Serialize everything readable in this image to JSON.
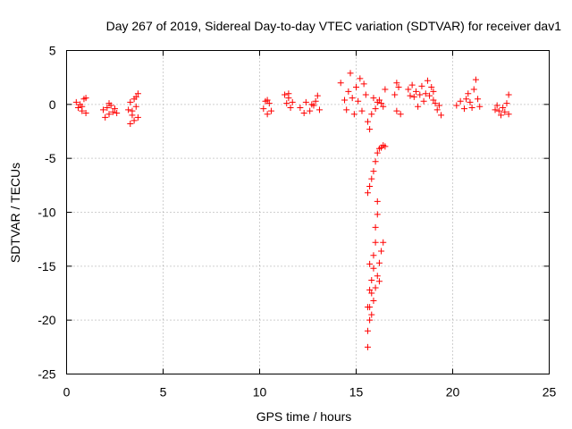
{
  "chart_data": {
    "type": "scatter",
    "title": "Day 267 of 2019, Sidereal Day-to-day VTEC variation (SDTVAR) for receiver dav1",
    "xlabel": "GPS time / hours",
    "ylabel": "SDTVAR / TECUs",
    "xlim": [
      0,
      25
    ],
    "ylim": [
      -25,
      5
    ],
    "xticks": [
      0,
      5,
      10,
      15,
      20,
      25
    ],
    "xtick_labels": [
      "0",
      "5",
      "10",
      "15",
      "20",
      "25"
    ],
    "yticks": [
      5,
      0,
      -5,
      -10,
      -15,
      -20,
      -25
    ],
    "ytick_labels": [
      "5",
      "0",
      "-5",
      "-10",
      "-15",
      "-20",
      "-25"
    ],
    "grid": true,
    "marker": "+",
    "color": "#ff0000",
    "series": [
      {
        "name": "SDTVAR",
        "points": [
          [
            0.5,
            0.2
          ],
          [
            0.6,
            -0.3
          ],
          [
            0.7,
            0.0
          ],
          [
            0.8,
            -0.6
          ],
          [
            0.9,
            0.5
          ],
          [
            1.0,
            -0.8
          ],
          [
            1.0,
            0.6
          ],
          [
            0.8,
            -0.2
          ],
          [
            1.9,
            -0.5
          ],
          [
            2.0,
            -1.2
          ],
          [
            2.1,
            -0.3
          ],
          [
            2.2,
            -0.9
          ],
          [
            2.3,
            -0.1
          ],
          [
            2.4,
            -0.7
          ],
          [
            2.5,
            -0.4
          ],
          [
            2.6,
            -0.8
          ],
          [
            2.2,
            0.1
          ],
          [
            3.2,
            -0.5
          ],
          [
            3.3,
            0.2
          ],
          [
            3.3,
            -1.8
          ],
          [
            3.4,
            -1.0
          ],
          [
            3.5,
            0.5
          ],
          [
            3.5,
            -1.5
          ],
          [
            3.6,
            -0.2
          ],
          [
            3.7,
            1.0
          ],
          [
            3.6,
            0.7
          ],
          [
            3.4,
            -0.6
          ],
          [
            3.7,
            -1.2
          ],
          [
            10.2,
            -0.4
          ],
          [
            10.3,
            0.3
          ],
          [
            10.4,
            -0.9
          ],
          [
            10.5,
            0.1
          ],
          [
            10.6,
            -0.6
          ],
          [
            10.4,
            0.4
          ],
          [
            11.3,
            0.9
          ],
          [
            11.4,
            0.1
          ],
          [
            11.5,
            0.6
          ],
          [
            11.6,
            -0.3
          ],
          [
            11.7,
            0.2
          ],
          [
            11.5,
            1.0
          ],
          [
            12.1,
            -0.3
          ],
          [
            12.3,
            -0.8
          ],
          [
            12.4,
            0.2
          ],
          [
            12.6,
            -0.6
          ],
          [
            12.8,
            -0.1
          ],
          [
            12.9,
            0.3
          ],
          [
            13.0,
            0.8
          ],
          [
            13.1,
            -0.5
          ],
          [
            12.7,
            0.0
          ],
          [
            14.2,
            2.0
          ],
          [
            14.4,
            0.4
          ],
          [
            14.5,
            -0.5
          ],
          [
            14.6,
            1.2
          ],
          [
            14.7,
            2.9
          ],
          [
            14.8,
            0.6
          ],
          [
            14.9,
            -0.9
          ],
          [
            15.0,
            1.6
          ],
          [
            15.1,
            0.3
          ],
          [
            15.2,
            2.4
          ],
          [
            15.3,
            -0.6
          ],
          [
            15.4,
            1.9
          ],
          [
            15.5,
            0.9
          ],
          [
            15.6,
            -1.6
          ],
          [
            15.7,
            -2.3
          ],
          [
            15.8,
            -0.9
          ],
          [
            15.9,
            0.6
          ],
          [
            16.0,
            -0.4
          ],
          [
            16.1,
            0.2
          ],
          [
            16.2,
            0.4
          ],
          [
            16.3,
            0.1
          ],
          [
            16.4,
            -0.2
          ],
          [
            16.5,
            1.4
          ],
          [
            15.6,
            -8.2
          ],
          [
            15.7,
            -7.6
          ],
          [
            15.8,
            -6.9
          ],
          [
            15.9,
            -6.2
          ],
          [
            16.0,
            -5.3
          ],
          [
            16.1,
            -4.5
          ],
          [
            16.2,
            -4.1
          ],
          [
            16.3,
            -4.0
          ],
          [
            16.4,
            -3.8
          ],
          [
            16.5,
            -3.9
          ],
          [
            15.6,
            -22.5
          ],
          [
            15.6,
            -21.0
          ],
          [
            15.7,
            -20.0
          ],
          [
            15.7,
            -18.8
          ],
          [
            15.8,
            -17.5
          ],
          [
            15.8,
            -16.3
          ],
          [
            15.9,
            -15.2
          ],
          [
            15.9,
            -14.0
          ],
          [
            16.0,
            -12.8
          ],
          [
            16.0,
            -11.4
          ],
          [
            16.1,
            -10.2
          ],
          [
            16.1,
            -9.0
          ],
          [
            15.6,
            -18.8
          ],
          [
            15.7,
            -17.2
          ],
          [
            15.8,
            -19.5
          ],
          [
            15.9,
            -18.2
          ],
          [
            16.0,
            -17.0
          ],
          [
            16.1,
            -15.9
          ],
          [
            16.2,
            -14.7
          ],
          [
            16.3,
            -13.6
          ],
          [
            16.4,
            -12.8
          ],
          [
            16.2,
            -16.4
          ],
          [
            15.7,
            -14.8
          ],
          [
            17.0,
            0.9
          ],
          [
            17.1,
            -0.6
          ],
          [
            17.2,
            1.6
          ],
          [
            17.3,
            -0.9
          ],
          [
            17.1,
            2.0
          ],
          [
            17.7,
            1.4
          ],
          [
            17.8,
            0.8
          ],
          [
            17.9,
            1.8
          ],
          [
            18.0,
            0.7
          ],
          [
            18.1,
            1.2
          ],
          [
            18.2,
            -0.2
          ],
          [
            18.3,
            0.9
          ],
          [
            18.4,
            1.7
          ],
          [
            18.5,
            0.3
          ],
          [
            18.6,
            1.0
          ],
          [
            18.7,
            2.2
          ],
          [
            18.8,
            0.8
          ],
          [
            18.9,
            1.6
          ],
          [
            19.0,
            0.4
          ],
          [
            19.1,
            0.1
          ],
          [
            19.2,
            -0.5
          ],
          [
            19.3,
            -0.1
          ],
          [
            19.4,
            -1.0
          ],
          [
            19.0,
            1.2
          ],
          [
            20.2,
            -0.1
          ],
          [
            20.4,
            0.3
          ],
          [
            20.6,
            -0.4
          ],
          [
            20.8,
            1.0
          ],
          [
            20.9,
            0.2
          ],
          [
            21.0,
            -0.3
          ],
          [
            21.1,
            1.4
          ],
          [
            21.2,
            2.3
          ],
          [
            21.3,
            0.5
          ],
          [
            21.4,
            -0.2
          ],
          [
            20.7,
            0.5
          ],
          [
            22.2,
            -0.5
          ],
          [
            22.3,
            -0.1
          ],
          [
            22.5,
            -1.0
          ],
          [
            22.6,
            -0.3
          ],
          [
            22.7,
            -0.7
          ],
          [
            22.8,
            0.1
          ],
          [
            22.9,
            0.9
          ],
          [
            22.9,
            -0.9
          ],
          [
            22.4,
            -0.6
          ]
        ]
      }
    ]
  }
}
